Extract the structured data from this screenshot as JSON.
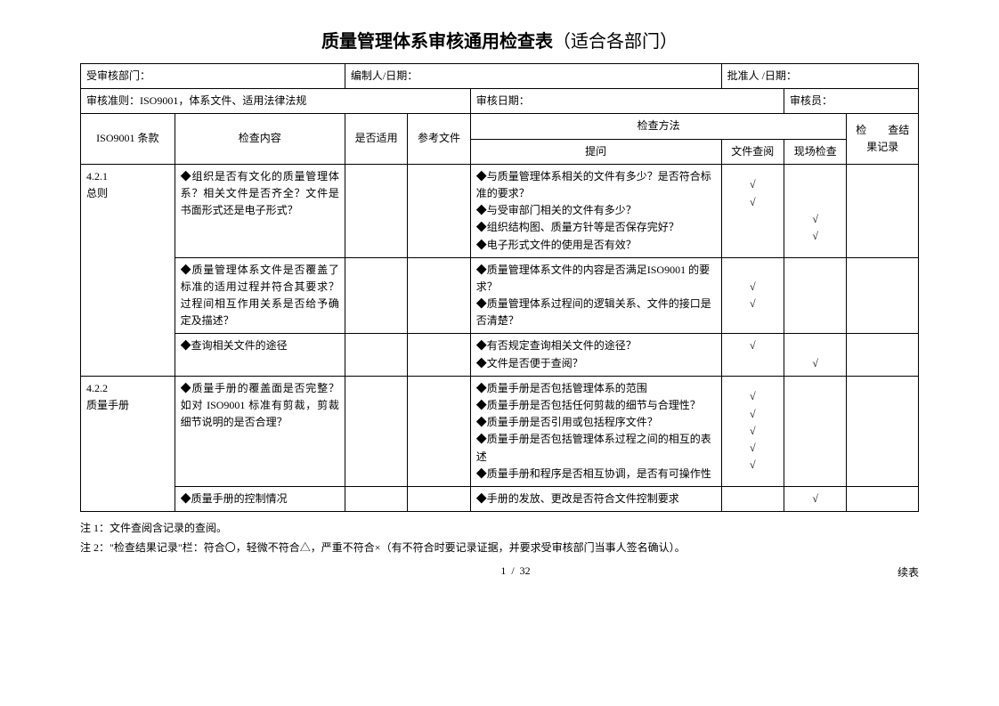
{
  "title_main": "质量管理体系审核通用检查表",
  "title_sub": "（适合各部门）",
  "header": {
    "dept": "受审核部门：",
    "compiler": "编制人/日期：",
    "approver": "批准人 /日期：",
    "criteria": "审核准则：ISO9001，体系文件、适用法律法规",
    "audit_date": "审核日期：",
    "auditor": "审核员："
  },
  "columns": {
    "clause": "ISO9001 条款",
    "content": "检查内容",
    "applicable": "是否适用",
    "ref": "参考文件",
    "method": "检查方法",
    "question": "提问",
    "doc_review": "文件查阅",
    "site_check": "现场检查",
    "result": "检　　查结果记录"
  },
  "rows": [
    {
      "clause": "4.2.1\n总则",
      "content": "◆组织是否有文化的质量管理体系？相关文件是否齐全？文件是书面形式还是电子形式？",
      "question": "◆与质量管理体系相关的文件有多少？是否符合标准的要求？\n◆与受审部门相关的文件有多少？\n◆组织结构图、质量方针等是否保存完好？\n◆电子形式文件的使用是否有效？",
      "doc_review": [
        "√",
        "√",
        "",
        ""
      ],
      "site_check": [
        "",
        "",
        "√",
        "√"
      ]
    },
    {
      "clause": "",
      "content": "◆质量管理体系文件是否覆盖了标准的适用过程并符合其要求？过程间相互作用关系是否给予确定及描述？",
      "question": "◆质量管理体系文件的内容是否满足ISO9001 的要求？\n◆质量管理体系过程间的逻辑关系、文件的接口是否清楚？",
      "doc_review": [
        "√",
        "√"
      ],
      "site_check": [
        "",
        ""
      ]
    },
    {
      "clause": "",
      "content": "◆查询相关文件的途径",
      "question": "◆有否规定查询相关文件的途径？\n◆文件是否便于查阅？",
      "doc_review": [
        "√",
        ""
      ],
      "site_check": [
        "",
        "√"
      ]
    },
    {
      "clause": "4.2.2\n质量手册",
      "content": "◆质量手册的覆盖面是否完整？如对 ISO9001 标准有剪裁，剪裁细节说明的是否合理？",
      "question": "◆质量手册是否包括管理体系的范围\n◆质量手册是否包括任何剪裁的细节与合理性？\n◆质量手册是否引用或包括程序文件？\n◆质量手册是否包括管理体系过程之间的相互的表述\n◆质量手册和程序是否相互协调，是否有可操作性",
      "doc_review": [
        "√",
        "√",
        "√",
        "√",
        "√"
      ],
      "site_check": [
        "",
        "",
        "",
        "",
        ""
      ]
    },
    {
      "clause": "",
      "content": "◆质量手册的控制情况",
      "question": "◆手册的发放、更改是否符合文件控制要求",
      "doc_review": [
        ""
      ],
      "site_check": [
        "√"
      ]
    }
  ],
  "notes": {
    "n1": "注 1：文件查阅含记录的查阅。",
    "n2": "注 2：\"检查结果记录\"栏：符合〇，轻微不符合△，严重不符合×（有不符合时要记录证据，并要求受审核部门当事人签名确认）。"
  },
  "continued": "续表",
  "page": "1",
  "page_sep": "/",
  "total": "32",
  "colors": {
    "border": "#000000",
    "bg": "#ffffff",
    "text": "#000000"
  }
}
